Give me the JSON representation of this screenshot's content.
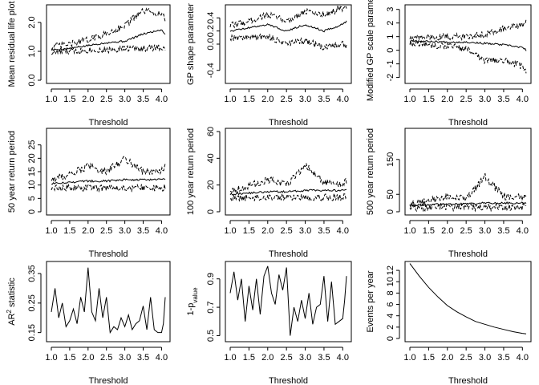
{
  "chart_data": [
    {
      "type": "line",
      "xlabel": "Threshold",
      "ylabel": "Mean residual life plot",
      "xlim": [
        1.0,
        4.1
      ],
      "ylim": [
        0.0,
        2.5
      ],
      "xticks": [
        1.0,
        1.5,
        2.0,
        2.5,
        3.0,
        3.5,
        4.0
      ],
      "yticks": [
        0.0,
        1.0,
        2.0
      ],
      "xtick_labels": [
        "1.0",
        "1.5",
        "2.0",
        "2.5",
        "3.0",
        "3.5",
        "4.0"
      ],
      "ytick_labels": [
        "0.0",
        "1.0",
        "2.0"
      ],
      "series": [
        {
          "style": "solid",
          "x": [
            1.0,
            1.5,
            2.0,
            2.5,
            3.0,
            3.5,
            4.0,
            4.1
          ],
          "y": [
            1.05,
            1.1,
            1.2,
            1.3,
            1.35,
            1.6,
            1.75,
            1.6
          ]
        },
        {
          "style": "dashed",
          "x": [
            1.0,
            1.5,
            2.0,
            2.5,
            3.0,
            3.5,
            4.0,
            4.1
          ],
          "y": [
            1.15,
            1.25,
            1.4,
            1.6,
            1.9,
            2.4,
            2.3,
            2.1
          ]
        },
        {
          "style": "dashed",
          "x": [
            1.0,
            1.5,
            2.0,
            2.5,
            3.0,
            3.5,
            4.0,
            4.1
          ],
          "y": [
            0.95,
            1.0,
            1.05,
            1.05,
            1.1,
            1.1,
            1.15,
            1.0
          ]
        }
      ]
    },
    {
      "type": "line",
      "xlabel": "Threshold",
      "ylabel": "GP shape parameter",
      "xlim": [
        1.0,
        4.1
      ],
      "ylim": [
        -0.55,
        0.55
      ],
      "xticks": [
        1.0,
        1.5,
        2.0,
        2.5,
        3.0,
        3.5,
        4.0
      ],
      "yticks": [
        -0.4,
        0.0,
        0.2,
        0.4
      ],
      "xtick_labels": [
        "1.0",
        "1.5",
        "2.0",
        "2.5",
        "3.0",
        "3.5",
        "4.0"
      ],
      "ytick_labels": [
        "-0.4",
        "0.0",
        "0.2",
        "0.4"
      ],
      "series": [
        {
          "style": "solid",
          "x": [
            1.0,
            1.5,
            2.0,
            2.5,
            3.0,
            3.5,
            4.0,
            4.1
          ],
          "y": [
            0.2,
            0.25,
            0.3,
            0.2,
            0.3,
            0.2,
            0.3,
            0.35
          ]
        },
        {
          "style": "dashed",
          "x": [
            1.0,
            1.5,
            2.0,
            2.5,
            3.0,
            3.5,
            4.0,
            4.1
          ],
          "y": [
            0.28,
            0.35,
            0.45,
            0.35,
            0.5,
            0.45,
            0.55,
            0.55
          ]
        },
        {
          "style": "dashed",
          "x": [
            1.0,
            1.5,
            2.0,
            2.5,
            3.0,
            3.5,
            4.0,
            4.1
          ],
          "y": [
            0.1,
            0.1,
            0.12,
            0.0,
            0.05,
            -0.05,
            0.0,
            -0.05
          ]
        }
      ]
    },
    {
      "type": "line",
      "xlabel": "Threshold",
      "ylabel": "Modified GP scale parameter",
      "xlim": [
        1.0,
        4.1
      ],
      "ylim": [
        -2.2,
        3.1
      ],
      "xticks": [
        1.0,
        1.5,
        2.0,
        2.5,
        3.0,
        3.5,
        4.0
      ],
      "yticks": [
        -2,
        -1,
        0,
        1,
        2,
        3
      ],
      "xtick_labels": [
        "1.0",
        "1.5",
        "2.0",
        "2.5",
        "3.0",
        "3.5",
        "4.0"
      ],
      "ytick_labels": [
        "-2",
        "-1",
        "0",
        "1",
        "2",
        "3"
      ],
      "series": [
        {
          "style": "solid",
          "x": [
            1.0,
            1.5,
            2.0,
            2.5,
            3.0,
            3.5,
            4.0,
            4.1
          ],
          "y": [
            0.7,
            0.65,
            0.6,
            0.6,
            0.5,
            0.4,
            0.2,
            0.0
          ]
        },
        {
          "style": "dashed",
          "x": [
            1.0,
            1.5,
            2.0,
            2.5,
            3.0,
            3.5,
            4.0,
            4.1
          ],
          "y": [
            0.9,
            0.95,
            1.0,
            1.0,
            1.2,
            1.6,
            1.8,
            2.2
          ]
        },
        {
          "style": "dashed",
          "x": [
            1.0,
            1.5,
            2.0,
            2.5,
            3.0,
            3.5,
            4.0,
            4.1
          ],
          "y": [
            0.5,
            0.4,
            0.3,
            0.1,
            -0.8,
            -0.7,
            -1.2,
            -1.5
          ]
        }
      ]
    },
    {
      "type": "line",
      "xlabel": "Threshold",
      "ylabel": "50 year return period",
      "xlim": [
        1.0,
        4.1
      ],
      "ylim": [
        0,
        30
      ],
      "xticks": [
        1.0,
        1.5,
        2.0,
        2.5,
        3.0,
        3.5,
        4.0
      ],
      "yticks": [
        0,
        5,
        10,
        15,
        20,
        25
      ],
      "xtick_labels": [
        "1.0",
        "1.5",
        "2.0",
        "2.5",
        "3.0",
        "3.5",
        "4.0"
      ],
      "ytick_labels": [
        "0",
        "5",
        "10",
        "15",
        "20",
        "25"
      ],
      "series": [
        {
          "style": "solid",
          "x": [
            1.0,
            1.5,
            2.0,
            2.5,
            3.0,
            3.5,
            4.0,
            4.1
          ],
          "y": [
            10.5,
            11,
            11.5,
            11.5,
            12,
            12,
            12,
            12
          ]
        },
        {
          "style": "dashed",
          "x": [
            1.0,
            1.5,
            2.0,
            2.5,
            3.0,
            3.5,
            4.0,
            4.1
          ],
          "y": [
            12,
            14,
            17,
            15,
            20,
            15,
            15,
            17
          ]
        },
        {
          "style": "dashed",
          "x": [
            1.0,
            1.5,
            2.0,
            2.5,
            3.0,
            3.5,
            4.0,
            4.1
          ],
          "y": [
            8.5,
            9,
            9,
            9,
            9,
            9,
            9,
            9
          ]
        }
      ]
    },
    {
      "type": "line",
      "xlabel": "Threshold",
      "ylabel": "100 year return period",
      "xlim": [
        1.0,
        4.1
      ],
      "ylim": [
        0,
        60
      ],
      "xticks": [
        1.0,
        1.5,
        2.0,
        2.5,
        3.0,
        3.5,
        4.0
      ],
      "yticks": [
        0,
        20,
        40,
        60
      ],
      "xtick_labels": [
        "1.0",
        "1.5",
        "2.0",
        "2.5",
        "3.0",
        "3.5",
        "4.0"
      ],
      "ytick_labels": [
        "0",
        "20",
        "40",
        "60"
      ],
      "series": [
        {
          "style": "solid",
          "x": [
            1.0,
            1.5,
            2.0,
            2.5,
            3.0,
            3.5,
            4.0,
            4.1
          ],
          "y": [
            13,
            14,
            15,
            15,
            16,
            16,
            16,
            16
          ]
        },
        {
          "style": "dashed",
          "x": [
            1.0,
            1.5,
            2.0,
            2.5,
            3.0,
            3.5,
            4.0,
            4.1
          ],
          "y": [
            16,
            19,
            24,
            20,
            35,
            22,
            20,
            23
          ]
        },
        {
          "style": "dashed",
          "x": [
            1.0,
            1.5,
            2.0,
            2.5,
            3.0,
            3.5,
            4.0,
            4.1
          ],
          "y": [
            10,
            10.5,
            11,
            11,
            11,
            11,
            11,
            11
          ]
        }
      ]
    },
    {
      "type": "line",
      "xlabel": "Threshold",
      "ylabel": "500 year return period",
      "xlim": [
        1.0,
        4.1
      ],
      "ylim": [
        0,
        230
      ],
      "xticks": [
        1.0,
        1.5,
        2.0,
        2.5,
        3.0,
        3.5,
        4.0
      ],
      "yticks": [
        0,
        50,
        150
      ],
      "xtick_labels": [
        "1.0",
        "1.5",
        "2.0",
        "2.5",
        "3.0",
        "3.5",
        "4.0"
      ],
      "ytick_labels": [
        "0",
        "50",
        "150"
      ],
      "series": [
        {
          "style": "solid",
          "x": [
            1.0,
            1.5,
            2.0,
            2.5,
            3.0,
            3.5,
            4.0,
            4.1
          ],
          "y": [
            18,
            20,
            22,
            22,
            25,
            25,
            25,
            25
          ]
        },
        {
          "style": "dashed",
          "x": [
            1.0,
            1.5,
            2.0,
            2.5,
            3.0,
            3.5,
            4.0,
            4.1
          ],
          "y": [
            22,
            30,
            45,
            35,
            100,
            45,
            40,
            50
          ]
        },
        {
          "style": "dashed",
          "x": [
            1.0,
            1.5,
            2.0,
            2.5,
            3.0,
            3.5,
            4.0,
            4.1
          ],
          "y": [
            12,
            12,
            13,
            13,
            13,
            13,
            13,
            13
          ]
        }
      ]
    },
    {
      "type": "line",
      "xlabel": "Threshold",
      "ylabel_parts": [
        "AR",
        "2",
        " statistic"
      ],
      "xlim": [
        1.0,
        4.1
      ],
      "ylim": [
        0.13,
        0.38
      ],
      "xticks": [
        1.0,
        1.5,
        2.0,
        2.5,
        3.0,
        3.5,
        4.0
      ],
      "yticks": [
        0.15,
        0.25,
        0.35
      ],
      "xtick_labels": [
        "1.0",
        "1.5",
        "2.0",
        "2.5",
        "3.0",
        "3.5",
        "4.0"
      ],
      "ytick_labels": [
        "0.15",
        "0.25",
        "0.35"
      ],
      "series": [
        {
          "style": "solid",
          "x": [
            1.0,
            1.1,
            1.2,
            1.3,
            1.4,
            1.5,
            1.6,
            1.7,
            1.8,
            1.9,
            2.0,
            2.1,
            2.2,
            2.3,
            2.4,
            2.5,
            2.6,
            2.7,
            2.8,
            2.9,
            3.0,
            3.1,
            3.2,
            3.3,
            3.4,
            3.5,
            3.6,
            3.7,
            3.8,
            3.9,
            4.0,
            4.05,
            4.1
          ],
          "y": [
            0.22,
            0.3,
            0.2,
            0.25,
            0.17,
            0.19,
            0.23,
            0.18,
            0.27,
            0.22,
            0.37,
            0.22,
            0.19,
            0.3,
            0.2,
            0.27,
            0.15,
            0.17,
            0.16,
            0.2,
            0.17,
            0.21,
            0.16,
            0.18,
            0.19,
            0.24,
            0.16,
            0.27,
            0.16,
            0.15,
            0.15,
            0.18,
            0.27
          ]
        }
      ]
    },
    {
      "type": "line",
      "xlabel": "Threshold",
      "ylabel_parts": [
        "1-p",
        "value"
      ],
      "xlim": [
        1.0,
        4.1
      ],
      "ylim": [
        0.48,
        1.0
      ],
      "xticks": [
        1.0,
        1.5,
        2.0,
        2.5,
        3.0,
        3.5,
        4.0
      ],
      "yticks": [
        0.5,
        0.7,
        0.9
      ],
      "xtick_labels": [
        "1.0",
        "1.5",
        "2.0",
        "2.5",
        "3.0",
        "3.5",
        "4.0"
      ],
      "ytick_labels": [
        "0.5",
        "0.7",
        "0.9"
      ],
      "series": [
        {
          "style": "solid",
          "x": [
            1.0,
            1.1,
            1.2,
            1.3,
            1.4,
            1.5,
            1.6,
            1.7,
            1.8,
            1.9,
            2.0,
            2.1,
            2.2,
            2.3,
            2.4,
            2.5,
            2.6,
            2.7,
            2.8,
            2.9,
            3.0,
            3.1,
            3.2,
            3.3,
            3.4,
            3.5,
            3.6,
            3.7,
            3.8,
            3.9,
            4.0,
            4.05,
            4.1
          ],
          "y": [
            0.8,
            0.95,
            0.75,
            0.9,
            0.6,
            0.85,
            0.68,
            0.9,
            0.65,
            0.92,
            0.99,
            0.8,
            0.72,
            0.93,
            0.82,
            0.98,
            0.5,
            0.7,
            0.6,
            0.75,
            0.62,
            0.8,
            0.58,
            0.7,
            0.72,
            0.92,
            0.6,
            0.88,
            0.58,
            0.6,
            0.62,
            0.75,
            0.92
          ]
        }
      ]
    },
    {
      "type": "line",
      "xlabel": "Threshold",
      "ylabel": "Events per year",
      "xlim": [
        1.0,
        4.1
      ],
      "ylim": [
        0,
        13
      ],
      "xticks": [
        1.0,
        1.5,
        2.0,
        2.5,
        3.0,
        3.5,
        4.0
      ],
      "yticks": [
        0,
        2,
        4,
        6,
        8,
        10,
        12
      ],
      "xtick_labels": [
        "1.0",
        "1.5",
        "2.0",
        "2.5",
        "3.0",
        "3.5",
        "4.0"
      ],
      "ytick_labels": [
        "0",
        "2",
        "4",
        "6",
        "8",
        "10",
        "12"
      ],
      "series": [
        {
          "style": "solid",
          "x": [
            1.0,
            1.25,
            1.5,
            1.75,
            2.0,
            2.25,
            2.5,
            2.75,
            3.0,
            3.25,
            3.5,
            3.75,
            4.0,
            4.1
          ],
          "y": [
            13.2,
            11.0,
            9.0,
            7.3,
            5.8,
            4.7,
            3.8,
            3.0,
            2.5,
            2.0,
            1.6,
            1.2,
            0.9,
            0.8
          ]
        }
      ]
    }
  ]
}
